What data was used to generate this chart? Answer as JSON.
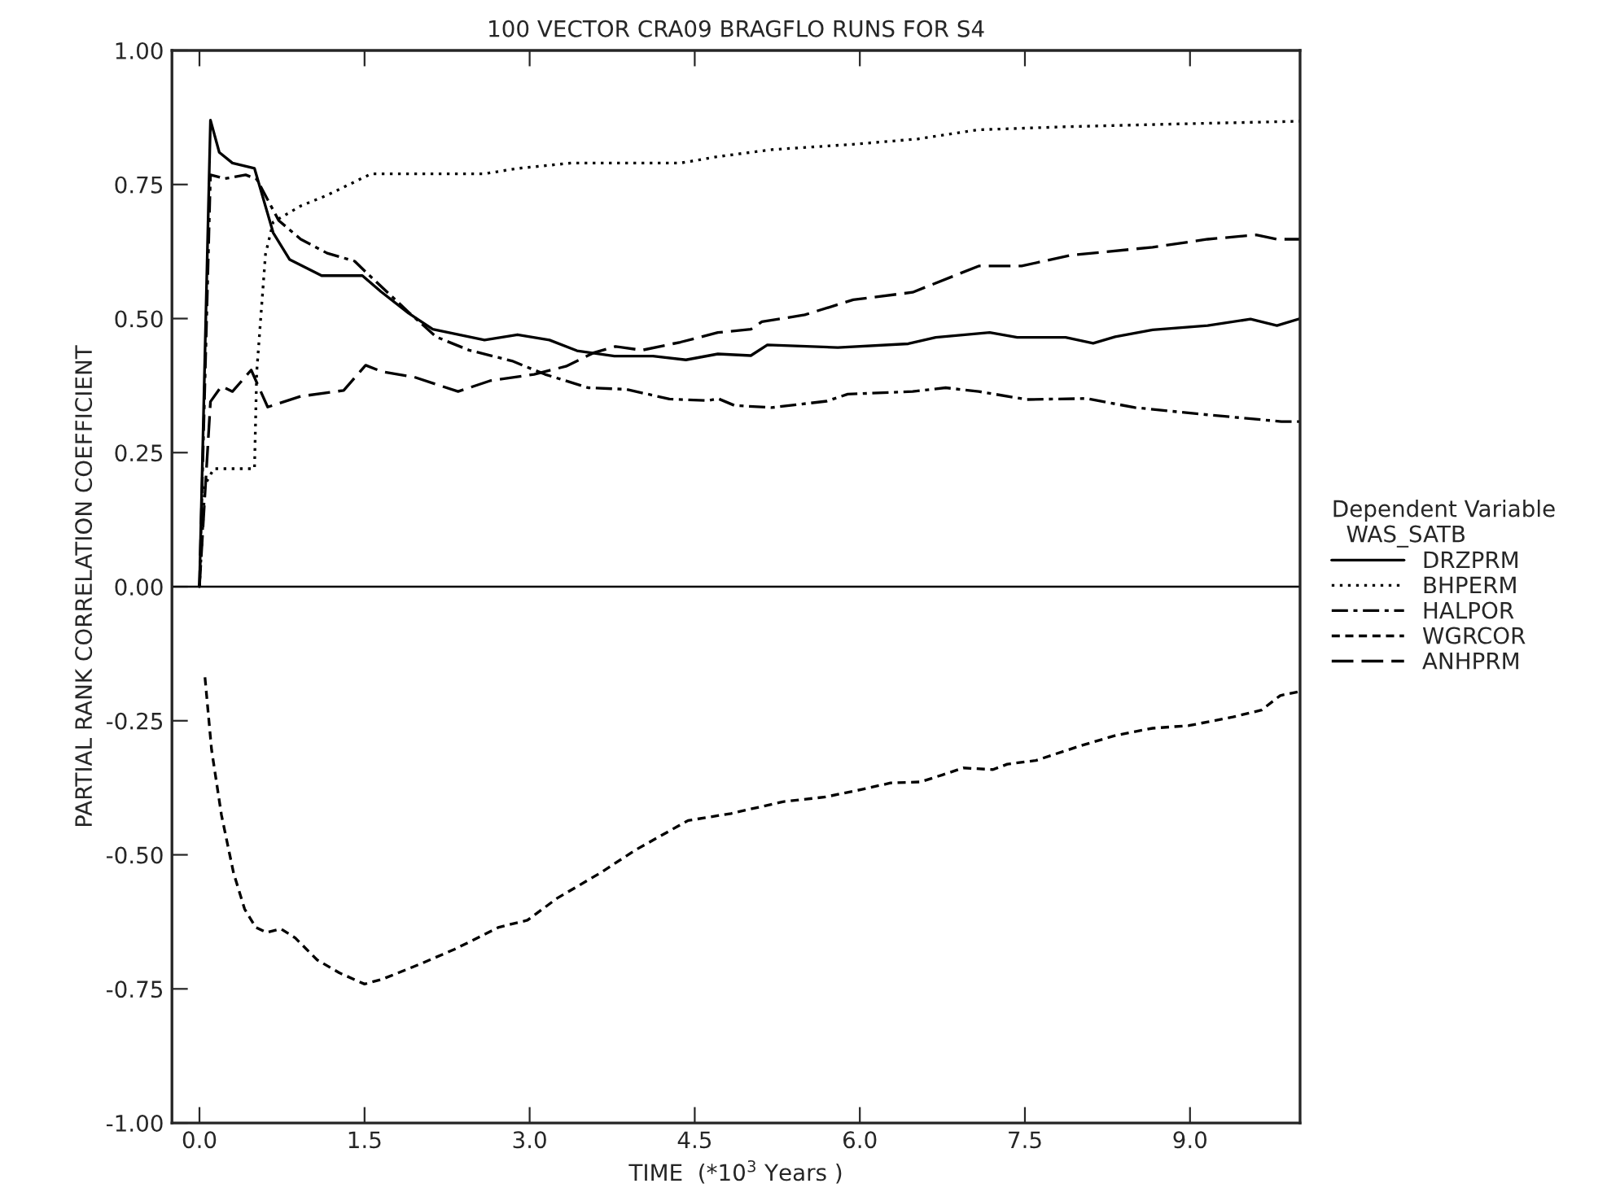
{
  "chart_data": {
    "type": "line",
    "title": "100 VECTOR CRA09 BRAGFLO RUNS FOR S4",
    "xlabel": "TIME  (*10$^{3}$ Years )",
    "ylabel": "PARTIAL RANK CORRELATION COEFFICIENT",
    "legend_title": "Dependent Variable\n  WAS_SATB",
    "legend": "right",
    "grid": false,
    "xlim": [
      -0.25,
      10.0
    ],
    "ylim": [
      -1.0,
      1.0
    ],
    "xticks": [
      {
        "value": 0,
        "label": "0.0"
      },
      {
        "value": 1.5,
        "label": "1.5"
      },
      {
        "value": 3,
        "label": "3.0"
      },
      {
        "value": 4.5,
        "label": "4.5"
      },
      {
        "value": 6,
        "label": "6.0"
      },
      {
        "value": 7.5,
        "label": "7.5"
      },
      {
        "value": 9,
        "label": "9.0"
      }
    ],
    "yticks": [
      {
        "value": -1,
        "label": "-1.00"
      },
      {
        "value": -0.75,
        "label": "-0.75"
      },
      {
        "value": -0.5,
        "label": "-0.50"
      },
      {
        "value": -0.25,
        "label": "-0.25"
      },
      {
        "value": 0,
        "label": "0.00"
      },
      {
        "value": 0.25,
        "label": "0.25"
      },
      {
        "value": 0.5,
        "label": "0.50"
      },
      {
        "value": 0.75,
        "label": "0.75"
      },
      {
        "value": 1,
        "label": "1.00"
      }
    ],
    "ref_lines": [
      {
        "axis": "y",
        "value": 0,
        "color": "#000000",
        "line_style": "solid"
      }
    ],
    "series": [
      {
        "name": "DRZPRM",
        "color": "#000000",
        "line_style": "solid",
        "x": [
          0,
          0.1,
          0.18,
          0.3,
          0.5,
          0.67,
          0.82,
          1.11,
          1.48,
          1.65,
          1.9,
          2.12,
          2.59,
          2.89,
          3.18,
          3.43,
          3.77,
          4.12,
          4.42,
          4.71,
          5.01,
          5.16,
          5.8,
          6.44,
          6.69,
          7.18,
          7.43,
          7.87,
          8.12,
          8.32,
          8.66,
          9.16,
          9.55,
          9.79,
          10.0
        ],
        "values": [
          0,
          0.87,
          0.81,
          0.79,
          0.78,
          0.66,
          0.61,
          0.58,
          0.58,
          0.55,
          0.51,
          0.48,
          0.46,
          0.47,
          0.46,
          0.44,
          0.43,
          0.43,
          0.423,
          0.434,
          0.431,
          0.451,
          0.446,
          0.453,
          0.465,
          0.474,
          0.465,
          0.465,
          0.454,
          0.466,
          0.479,
          0.487,
          0.499,
          0.487,
          0.5
        ]
      },
      {
        "name": "BHPERM",
        "color": "#000000",
        "line_style": "dotted",
        "x": [
          0,
          0.05,
          0.13,
          0.5,
          0.52,
          0.6,
          0.67,
          0.92,
          1.16,
          1.56,
          1.9,
          2.25,
          2.59,
          2.89,
          3.38,
          3.88,
          4.37,
          4.71,
          5.2,
          5.94,
          6.53,
          7.07,
          7.91,
          8.9,
          10.0
        ],
        "values": [
          0,
          0.19,
          0.22,
          0.22,
          0.4,
          0.62,
          0.68,
          0.71,
          0.73,
          0.77,
          0.77,
          0.77,
          0.77,
          0.78,
          0.79,
          0.79,
          0.79,
          0.802,
          0.815,
          0.825,
          0.835,
          0.852,
          0.858,
          0.863,
          0.868
        ]
      },
      {
        "name": "HALPOR",
        "color": "#000000",
        "line_style": "dashdot",
        "x": [
          0,
          0.1,
          0.23,
          0.42,
          0.52,
          0.72,
          0.92,
          1.16,
          1.41,
          1.51,
          1.9,
          2.15,
          2.45,
          2.84,
          3.14,
          3.53,
          3.88,
          4.27,
          4.62,
          4.71,
          4.86,
          5.2,
          5.7,
          5.89,
          6.48,
          6.78,
          7.08,
          7.52,
          8.06,
          8.5,
          9.14,
          9.83,
          10.0
        ],
        "values": [
          0,
          0.768,
          0.761,
          0.768,
          0.76,
          0.683,
          0.648,
          0.622,
          0.607,
          0.587,
          0.512,
          0.466,
          0.441,
          0.421,
          0.396,
          0.371,
          0.368,
          0.35,
          0.347,
          0.351,
          0.338,
          0.334,
          0.346,
          0.359,
          0.364,
          0.371,
          0.364,
          0.349,
          0.351,
          0.334,
          0.321,
          0.308,
          0.308
        ]
      },
      {
        "name": "WGRCOR",
        "color": "#000000",
        "line_style": "dashed",
        "x": [
          0.05,
          0.11,
          0.2,
          0.31,
          0.41,
          0.51,
          0.61,
          0.74,
          0.87,
          1.07,
          1.27,
          1.5,
          1.66,
          1.99,
          2.32,
          2.72,
          2.98,
          3.25,
          3.64,
          3.97,
          4.44,
          4.83,
          5.3,
          5.69,
          6.02,
          6.28,
          6.55,
          6.75,
          6.94,
          7.21,
          7.34,
          7.6,
          8.0,
          8.33,
          8.66,
          8.99,
          9.39,
          9.65,
          9.82,
          9.98
        ],
        "values": [
          -0.169,
          -0.304,
          -0.426,
          -0.534,
          -0.601,
          -0.635,
          -0.645,
          -0.638,
          -0.655,
          -0.696,
          -0.72,
          -0.741,
          -0.732,
          -0.705,
          -0.676,
          -0.635,
          -0.622,
          -0.581,
          -0.534,
          -0.49,
          -0.436,
          -0.423,
          -0.401,
          -0.392,
          -0.378,
          -0.366,
          -0.364,
          -0.351,
          -0.338,
          -0.341,
          -0.331,
          -0.324,
          -0.297,
          -0.277,
          -0.264,
          -0.259,
          -0.243,
          -0.23,
          -0.203,
          -0.196
        ]
      },
      {
        "name": "ANHPRM",
        "color": "#000000",
        "line_style": "longdash",
        "x": [
          0,
          0.1,
          0.2,
          0.3,
          0.47,
          0.62,
          0.92,
          1.31,
          1.51,
          1.66,
          1.95,
          2.35,
          2.64,
          3.04,
          3.33,
          3.58,
          3.78,
          4.02,
          4.37,
          4.71,
          5.01,
          5.11,
          5.5,
          5.94,
          6.48,
          7.08,
          7.47,
          7.91,
          8.66,
          9.16,
          9.6,
          9.79,
          10.0
        ],
        "values": [
          0,
          0.345,
          0.374,
          0.364,
          0.404,
          0.335,
          0.355,
          0.366,
          0.413,
          0.401,
          0.391,
          0.364,
          0.384,
          0.396,
          0.411,
          0.436,
          0.448,
          0.441,
          0.456,
          0.474,
          0.48,
          0.494,
          0.507,
          0.535,
          0.549,
          0.598,
          0.598,
          0.618,
          0.633,
          0.648,
          0.656,
          0.648,
          0.648
        ]
      }
    ]
  }
}
